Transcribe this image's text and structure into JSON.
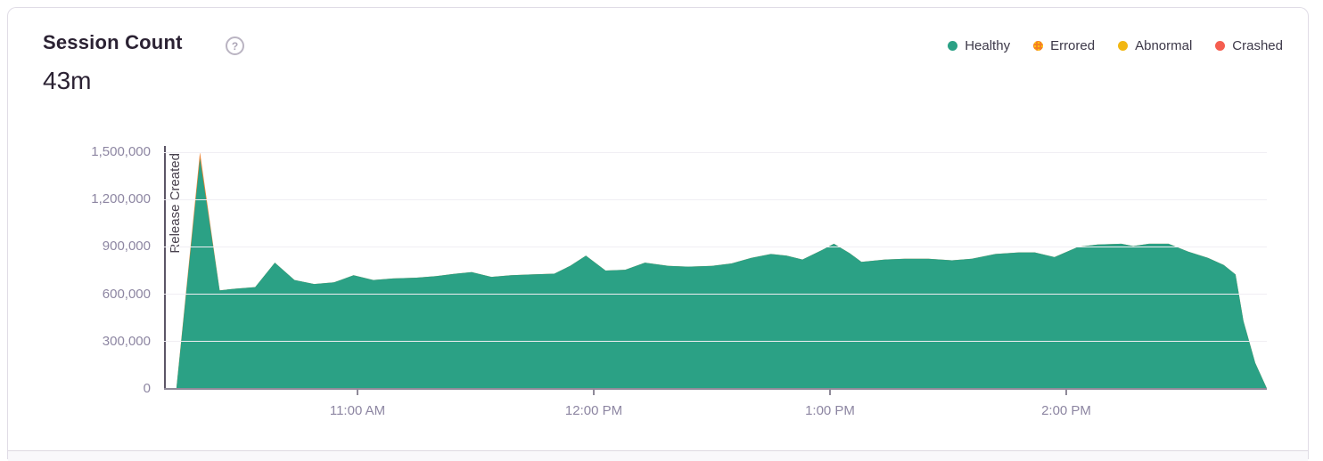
{
  "card": {
    "title": "Session Count",
    "value": "43m",
    "help_glyph": "?"
  },
  "legend": [
    {
      "label": "Healthy",
      "color": "#2BA185",
      "pattern": "solid"
    },
    {
      "label": "Errored",
      "color": "#F58024",
      "pattern": "dotted",
      "dot_color": "#FDC60C"
    },
    {
      "label": "Abnormal",
      "color": "#F2B712",
      "pattern": "solid"
    },
    {
      "label": "Crashed",
      "color": "#F55E50",
      "pattern": "solid"
    }
  ],
  "chart_data": {
    "type": "area",
    "title": "Session Count",
    "stacked": true,
    "grid": true,
    "legend_position": "top-right",
    "ylim": [
      0,
      1500000
    ],
    "y_ticks": [
      {
        "value": 0,
        "label": "0"
      },
      {
        "value": 300000,
        "label": "300,000"
      },
      {
        "value": 600000,
        "label": "600,000"
      },
      {
        "value": 900000,
        "label": "900,000"
      },
      {
        "value": 1200000,
        "label": "1,200,000"
      },
      {
        "value": 1500000,
        "label": "1,500,000"
      }
    ],
    "x_ticks": [
      "11:00 AM",
      "12:00 PM",
      "1:00 PM",
      "2:00 PM"
    ],
    "x_range": [
      "10:14 AM",
      "2:51 PM"
    ],
    "annotation": {
      "label": "Release Created",
      "time": "10:14 AM"
    },
    "series_meta": [
      {
        "name": "Healthy",
        "color": "#2BA185"
      },
      {
        "name": "Errored",
        "color": "#EE8434"
      }
    ],
    "points": [
      {
        "t": "10:14 AM",
        "healthy": 0,
        "errored": 0
      },
      {
        "t": "10:20 AM",
        "healthy": 1460000,
        "errored": 40000
      },
      {
        "t": "10:25 AM",
        "healthy": 625000,
        "errored": 0
      },
      {
        "t": "10:29 AM",
        "healthy": 635000,
        "errored": 0
      },
      {
        "t": "10:34 AM",
        "healthy": 645000,
        "errored": 0
      },
      {
        "t": "10:39 AM",
        "healthy": 800000,
        "errored": 0
      },
      {
        "t": "10:44 AM",
        "healthy": 690000,
        "errored": 0
      },
      {
        "t": "10:49 AM",
        "healthy": 665000,
        "errored": 0
      },
      {
        "t": "10:54 AM",
        "healthy": 675000,
        "errored": 0
      },
      {
        "t": "10:59 AM",
        "healthy": 720000,
        "errored": 0
      },
      {
        "t": "11:04 AM",
        "healthy": 690000,
        "errored": 0
      },
      {
        "t": "11:09 AM",
        "healthy": 700000,
        "errored": 0
      },
      {
        "t": "11:15 AM",
        "healthy": 705000,
        "errored": 0
      },
      {
        "t": "11:20 AM",
        "healthy": 715000,
        "errored": 0
      },
      {
        "t": "11:25 AM",
        "healthy": 730000,
        "errored": 0
      },
      {
        "t": "11:29 AM",
        "healthy": 740000,
        "errored": 0
      },
      {
        "t": "11:34 AM",
        "healthy": 710000,
        "errored": 0
      },
      {
        "t": "11:39 AM",
        "healthy": 720000,
        "errored": 0
      },
      {
        "t": "11:44 AM",
        "healthy": 725000,
        "errored": 0
      },
      {
        "t": "11:50 AM",
        "healthy": 730000,
        "errored": 0
      },
      {
        "t": "11:54 AM",
        "healthy": 780000,
        "errored": 0
      },
      {
        "t": "11:58 AM",
        "healthy": 845000,
        "errored": 0
      },
      {
        "t": "12:03 PM",
        "healthy": 750000,
        "errored": 0
      },
      {
        "t": "12:08 PM",
        "healthy": 755000,
        "errored": 0
      },
      {
        "t": "12:13 PM",
        "healthy": 800000,
        "errored": 0
      },
      {
        "t": "12:19 PM",
        "healthy": 780000,
        "errored": 0
      },
      {
        "t": "12:24 PM",
        "healthy": 775000,
        "errored": 0
      },
      {
        "t": "12:30 PM",
        "healthy": 780000,
        "errored": 0
      },
      {
        "t": "12:35 PM",
        "healthy": 795000,
        "errored": 0
      },
      {
        "t": "12:40 PM",
        "healthy": 830000,
        "errored": 0
      },
      {
        "t": "12:45 PM",
        "healthy": 855000,
        "errored": 0
      },
      {
        "t": "12:49 PM",
        "healthy": 845000,
        "errored": 0
      },
      {
        "t": "12:53 PM",
        "healthy": 820000,
        "errored": 0
      },
      {
        "t": "12:58 PM",
        "healthy": 880000,
        "errored": 0
      },
      {
        "t": "1:01 PM",
        "healthy": 920000,
        "errored": 0
      },
      {
        "t": "1:05 PM",
        "healthy": 860000,
        "errored": 0
      },
      {
        "t": "1:08 PM",
        "healthy": 805000,
        "errored": 0
      },
      {
        "t": "1:14 PM",
        "healthy": 820000,
        "errored": 0
      },
      {
        "t": "1:19 PM",
        "healthy": 825000,
        "errored": 0
      },
      {
        "t": "1:25 PM",
        "healthy": 825000,
        "errored": 0
      },
      {
        "t": "1:31 PM",
        "healthy": 815000,
        "errored": 0
      },
      {
        "t": "1:36 PM",
        "healthy": 825000,
        "errored": 0
      },
      {
        "t": "1:42 PM",
        "healthy": 855000,
        "errored": 0
      },
      {
        "t": "1:48 PM",
        "healthy": 865000,
        "errored": 0
      },
      {
        "t": "1:52 PM",
        "healthy": 865000,
        "errored": 0
      },
      {
        "t": "1:57 PM",
        "healthy": 835000,
        "errored": 0
      },
      {
        "t": "2:03 PM",
        "healthy": 900000,
        "errored": 0
      },
      {
        "t": "2:08 PM",
        "healthy": 915000,
        "errored": 0
      },
      {
        "t": "2:14 PM",
        "healthy": 920000,
        "errored": 0
      },
      {
        "t": "2:17 PM",
        "healthy": 905000,
        "errored": 0
      },
      {
        "t": "2:21 PM",
        "healthy": 920000,
        "errored": 0
      },
      {
        "t": "2:26 PM",
        "healthy": 920000,
        "errored": 0
      },
      {
        "t": "2:31 PM",
        "healthy": 870000,
        "errored": 0
      },
      {
        "t": "2:36 PM",
        "healthy": 830000,
        "errored": 0
      },
      {
        "t": "2:40 PM",
        "healthy": 785000,
        "errored": 0
      },
      {
        "t": "2:43 PM",
        "healthy": 725000,
        "errored": 0
      },
      {
        "t": "2:45 PM",
        "healthy": 430000,
        "errored": 0
      },
      {
        "t": "2:48 PM",
        "healthy": 165000,
        "errored": 0
      },
      {
        "t": "2:51 PM",
        "healthy": 0,
        "errored": 0
      }
    ]
  }
}
